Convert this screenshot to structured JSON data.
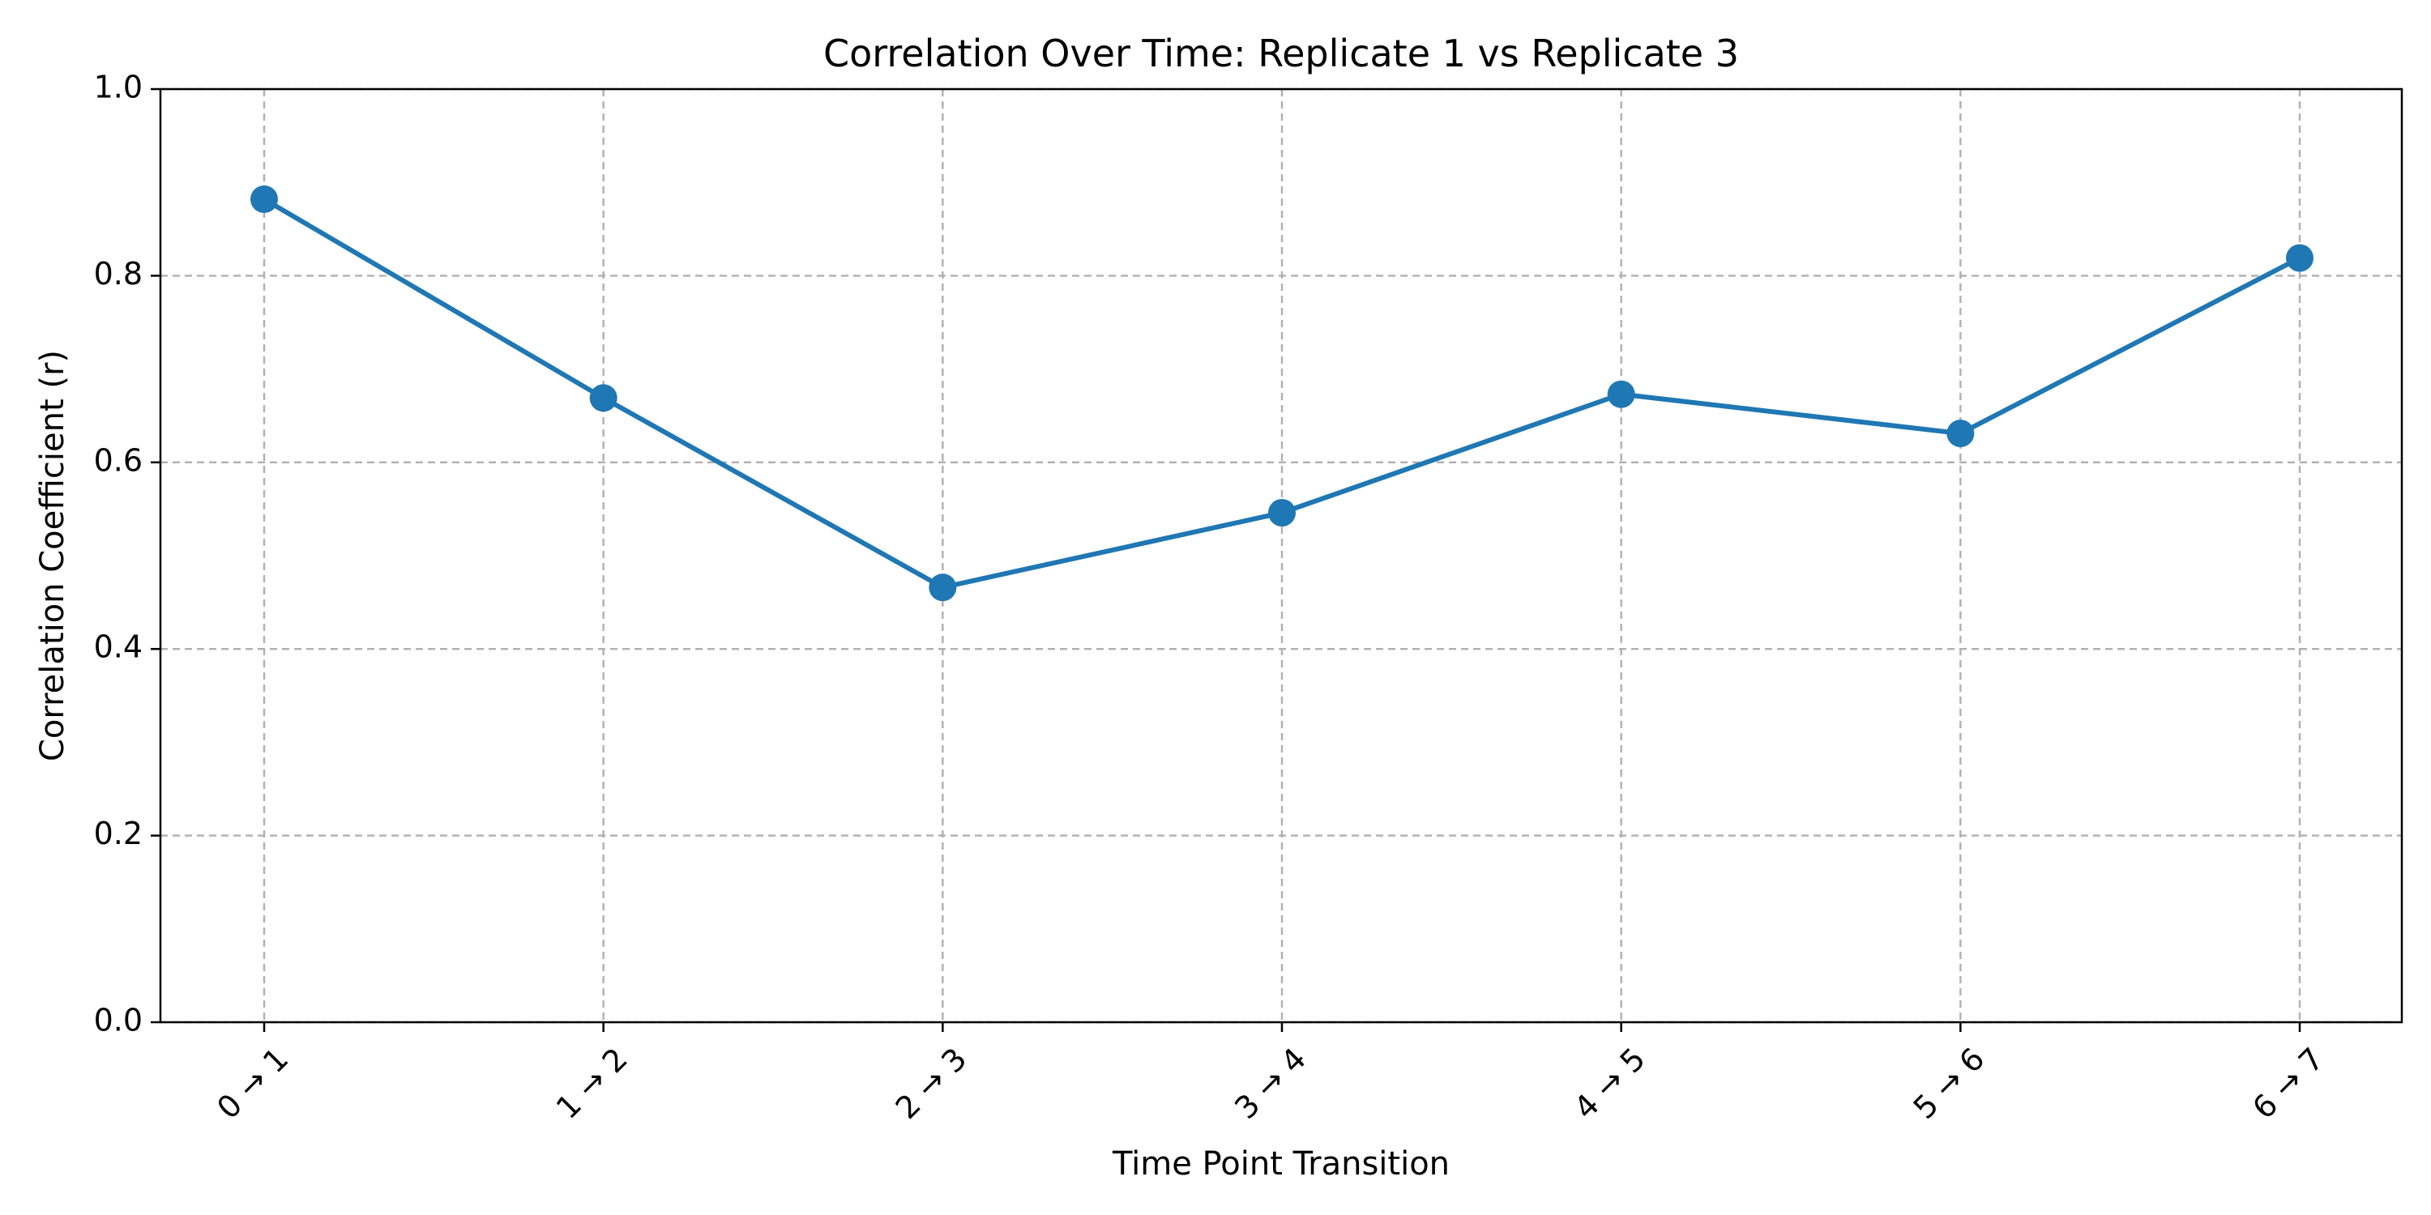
{
  "chart_data": {
    "type": "line",
    "title": "Correlation Over Time: Replicate 1 vs Replicate 3",
    "xlabel": "Time Point Transition",
    "ylabel": "Correlation Coefficient (r)",
    "categories": [
      "0 → 1",
      "1 → 2",
      "2 → 3",
      "3 → 4",
      "4 → 5",
      "5 → 6",
      "6 → 7"
    ],
    "series": [
      {
        "values": [
          0.882,
          0.669,
          0.466,
          0.546,
          0.673,
          0.631,
          0.819
        ],
        "color": "#1f77b4",
        "marker": "circle"
      }
    ],
    "ylim": [
      0.0,
      1.0
    ],
    "yticks": [
      "0.0",
      "0.2",
      "0.4",
      "0.6",
      "0.8",
      "1.0"
    ],
    "grid": true,
    "grid_style": "dashed",
    "grid_color": "#b0b0b0"
  }
}
